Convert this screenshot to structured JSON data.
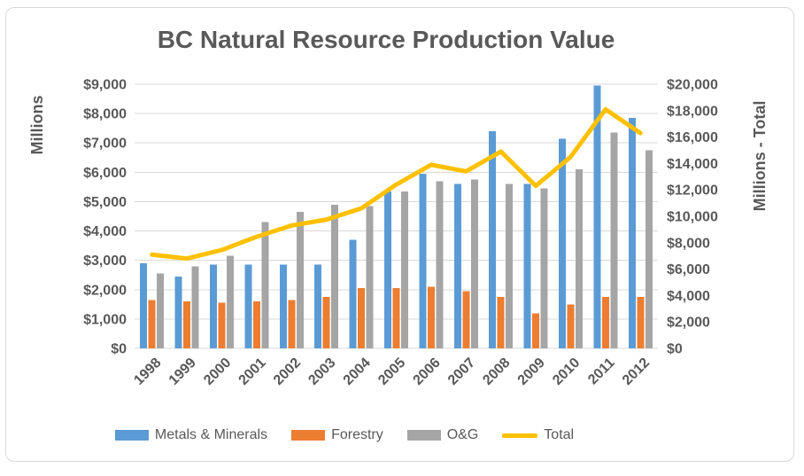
{
  "chart_data": {
    "type": "bar",
    "subtype": "combo-bar-line",
    "title": "BC Natural Resource Production Value",
    "categories": [
      "1998",
      "1999",
      "2000",
      "2001",
      "2002",
      "2003",
      "2004",
      "2005",
      "2006",
      "2007",
      "2008",
      "2009",
      "2010",
      "2011",
      "2012"
    ],
    "series": [
      {
        "name": "Metals & Minerals",
        "render": "bar",
        "axis": "left",
        "color": "#5B9BD5",
        "values": [
          2900,
          2450,
          2850,
          2850,
          2850,
          2850,
          3700,
          5350,
          5950,
          5600,
          7400,
          5600,
          7150,
          8950,
          7850
        ]
      },
      {
        "name": "Forestry",
        "render": "bar",
        "axis": "left",
        "color": "#ED7D31",
        "values": [
          1650,
          1600,
          1550,
          1600,
          1650,
          1750,
          2050,
          2050,
          2100,
          1950,
          1750,
          1200,
          1500,
          1750,
          1750
        ]
      },
      {
        "name": "O&G",
        "render": "bar",
        "axis": "left",
        "color": "#A5A5A5",
        "values": [
          2550,
          2800,
          3150,
          4300,
          4650,
          4900,
          4850,
          5350,
          5700,
          5750,
          5600,
          5450,
          6100,
          7350,
          6750
        ]
      },
      {
        "name": "Total",
        "render": "line",
        "axis": "right",
        "color": "#FFC000",
        "values": [
          7100,
          6800,
          7450,
          8450,
          9300,
          9750,
          10600,
          12400,
          13900,
          13400,
          14900,
          12300,
          14500,
          18100,
          16300
        ]
      }
    ],
    "left_axis": {
      "title": "Millions",
      "min": 0,
      "max": 9000,
      "step": 1000,
      "tick_labels": [
        "$0",
        "$1,000",
        "$2,000",
        "$3,000",
        "$4,000",
        "$5,000",
        "$6,000",
        "$7,000",
        "$8,000",
        "$9,000"
      ]
    },
    "right_axis": {
      "title": "Millions - Total",
      "min": 0,
      "max": 20000,
      "step": 2000,
      "tick_labels": [
        "$0",
        "$2,000",
        "$4,000",
        "$6,000",
        "$8,000",
        "$10,000",
        "$12,000",
        "$14,000",
        "$16,000",
        "$18,000",
        "$20,000"
      ]
    },
    "legend": {
      "position": "bottom",
      "entries": [
        "Metals & Minerals",
        "Forestry",
        "O&G",
        "Total"
      ]
    },
    "grid": true,
    "colors": {
      "grid": "#D9D9D9",
      "text": "#595959",
      "frame_border": "#D9D9D9",
      "background": "#FFFFFF"
    }
  }
}
